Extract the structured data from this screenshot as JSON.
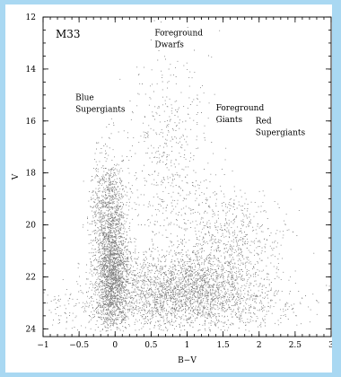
{
  "chart_data": {
    "type": "scatter",
    "title": "M33",
    "xlabel": "B−V",
    "ylabel": "V",
    "xlim": [
      -1,
      3
    ],
    "ylim": [
      24.3,
      12
    ],
    "y_inverted": true,
    "grid": false,
    "x_ticks": [
      "−1",
      "−0.5",
      "0",
      "0.5",
      "1",
      "1.5",
      "2",
      "2.5",
      "3"
    ],
    "x_tick_values": [
      -1,
      -0.5,
      0,
      0.5,
      1,
      1.5,
      2,
      2.5,
      3
    ],
    "y_ticks": [
      "12",
      "14",
      "16",
      "18",
      "20",
      "22",
      "24"
    ],
    "y_tick_values": [
      12,
      14,
      16,
      18,
      20,
      22,
      24
    ],
    "annotations": [
      {
        "lines": [
          "Foreground",
          "Dwarfs"
        ],
        "x": 0.55,
        "y": 12.7
      },
      {
        "lines": [
          "Blue",
          "Supergiants"
        ],
        "x": -0.55,
        "y": 15.2
      },
      {
        "lines": [
          "Foreground",
          "Giants"
        ],
        "x": 1.4,
        "y": 15.6
      },
      {
        "lines": [
          "Red",
          "Supergiants"
        ],
        "x": 1.95,
        "y": 16.1
      }
    ],
    "point_density": [
      {
        "region": "blue plume",
        "x": -0.05,
        "y": 21.8,
        "sx": 0.12,
        "sy": 1.2,
        "weight": 0.3
      },
      {
        "region": "blue plume upper",
        "x": -0.1,
        "y": 19.2,
        "sx": 0.12,
        "sy": 1.0,
        "weight": 0.1
      },
      {
        "region": "red clump / RGB",
        "x": 1.0,
        "y": 22.3,
        "sx": 0.55,
        "sy": 0.7,
        "weight": 0.3
      },
      {
        "region": "red supergiants",
        "x": 1.6,
        "y": 20.5,
        "sx": 0.35,
        "sy": 0.9,
        "weight": 0.08
      },
      {
        "region": "foreground dwarfs",
        "x": 0.75,
        "y": 17.5,
        "sx": 0.3,
        "sy": 2.2,
        "weight": 0.08
      },
      {
        "region": "faint field",
        "x": 0.8,
        "y": 23.2,
        "sx": 0.9,
        "sy": 0.5,
        "weight": 0.14
      }
    ]
  }
}
